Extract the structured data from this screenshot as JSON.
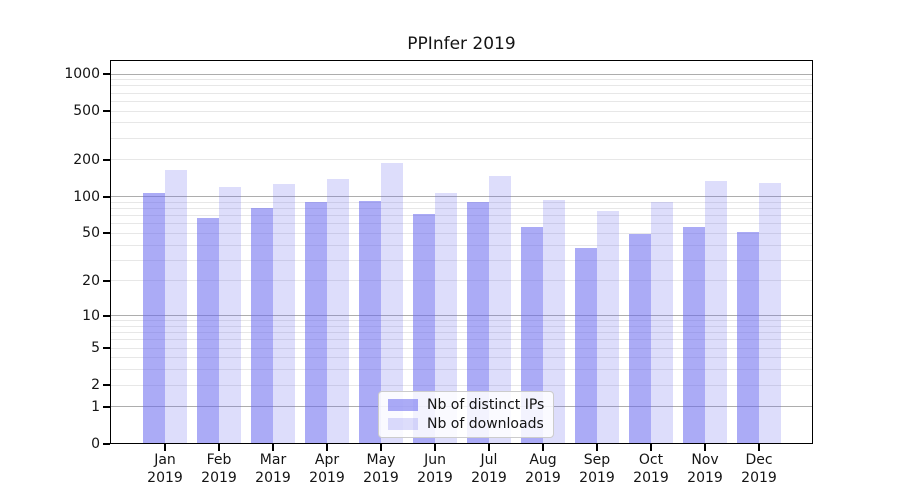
{
  "figure": {
    "title": "PPInfer 2019",
    "colors": {
      "bar_distinct_ips": "rgba(102,102,238,0.55)",
      "bar_downloads": "rgba(102,102,238,0.22)",
      "grid_major": "#adadad",
      "grid_minor": "#e7e7e7",
      "spine": "#000000",
      "background": "#ffffff"
    }
  },
  "chart_data": {
    "type": "bar",
    "title": "PPInfer 2019",
    "categories": [
      "Jan 2019",
      "Feb 2019",
      "Mar 2019",
      "Apr 2019",
      "May 2019",
      "Jun 2019",
      "Jul 2019",
      "Aug 2019",
      "Sep 2019",
      "Oct 2019",
      "Nov 2019",
      "Dec 2019"
    ],
    "x_axis": {
      "months": [
        "Jan",
        "Feb",
        "Mar",
        "Apr",
        "May",
        "Jun",
        "Jul",
        "Aug",
        "Sep",
        "Oct",
        "Nov",
        "Dec"
      ],
      "year_label": "2019"
    },
    "series": [
      {
        "name": "Nb of distinct IPs",
        "values": [
          107,
          67,
          81,
          91,
          92,
          72,
          91,
          57,
          38,
          49,
          56,
          51
        ]
      },
      {
        "name": "Nb of downloads",
        "values": [
          165,
          120,
          127,
          139,
          190,
          108,
          149,
          94,
          77,
          90,
          135,
          129
        ]
      }
    ],
    "y_axis": {
      "scale": "log1p",
      "ticks": [
        0,
        1,
        2,
        5,
        10,
        20,
        50,
        100,
        200,
        500,
        1000
      ],
      "major_gridlines": [
        1,
        10,
        100,
        1000
      ],
      "minor_gridlines": [
        2,
        3,
        4,
        5,
        6,
        7,
        8,
        9,
        20,
        30,
        40,
        50,
        60,
        70,
        80,
        90,
        200,
        300,
        400,
        500,
        600,
        700,
        800,
        900
      ],
      "ylim": [
        0,
        1296
      ]
    },
    "legend_position": "lower center",
    "grid": true
  }
}
